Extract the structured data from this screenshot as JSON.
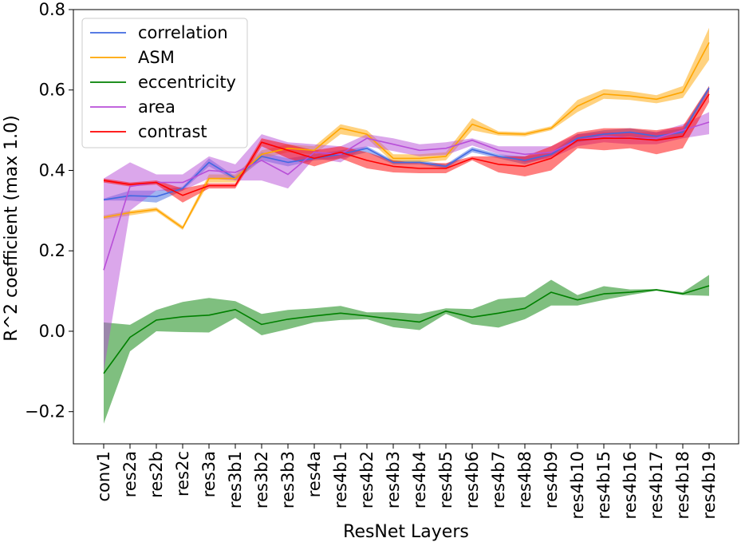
{
  "chart_data": {
    "type": "line",
    "title": "",
    "xlabel": "ResNet Layers",
    "ylabel": "R^2 coefficient (max 1.0)",
    "ylim": [
      -0.28,
      0.8
    ],
    "yticks": [
      -0.2,
      0.0,
      0.2,
      0.4,
      0.6,
      0.8
    ],
    "ytick_labels": [
      "−0.2",
      "0.0",
      "0.2",
      "0.4",
      "0.6",
      "0.8"
    ],
    "legend_position": "top-left",
    "grid": false,
    "categories": [
      "conv1",
      "res2a",
      "res2b",
      "res2c",
      "res3a",
      "res3b1",
      "res3b2",
      "res3b3",
      "res4a",
      "res4b1",
      "res4b2",
      "res4b3",
      "res4b4",
      "res4b5",
      "res4b6",
      "res4b7",
      "res4b8",
      "res4b9",
      "res4b10",
      "res4b15",
      "res4b16",
      "res4b17",
      "res4b18",
      "res4b19"
    ],
    "series": [
      {
        "name": "correlation",
        "color": "#4169e1",
        "values": [
          0.327,
          0.337,
          0.335,
          0.355,
          0.42,
          0.38,
          0.435,
          0.42,
          0.43,
          0.44,
          0.455,
          0.42,
          0.42,
          0.41,
          0.452,
          0.435,
          0.425,
          0.44,
          0.48,
          0.49,
          0.495,
          0.485,
          0.495,
          0.605
        ],
        "lower": [
          0.325,
          0.325,
          0.32,
          0.35,
          0.41,
          0.375,
          0.425,
          0.41,
          0.425,
          0.43,
          0.445,
          0.415,
          0.415,
          0.405,
          0.445,
          0.43,
          0.415,
          0.435,
          0.47,
          0.48,
          0.485,
          0.475,
          0.485,
          0.595
        ],
        "upper": [
          0.33,
          0.35,
          0.35,
          0.36,
          0.43,
          0.385,
          0.445,
          0.43,
          0.44,
          0.45,
          0.46,
          0.425,
          0.425,
          0.415,
          0.458,
          0.44,
          0.435,
          0.445,
          0.49,
          0.5,
          0.505,
          0.495,
          0.505,
          0.61
        ]
      },
      {
        "name": "ASM",
        "color": "#ffa500",
        "values": [
          0.283,
          0.295,
          0.303,
          0.257,
          0.38,
          0.38,
          0.44,
          0.455,
          0.45,
          0.505,
          0.49,
          0.43,
          0.43,
          0.435,
          0.515,
          0.492,
          0.49,
          0.505,
          0.56,
          0.59,
          0.585,
          0.577,
          0.595,
          0.718
        ],
        "lower": [
          0.278,
          0.288,
          0.298,
          0.252,
          0.37,
          0.37,
          0.43,
          0.445,
          0.44,
          0.49,
          0.48,
          0.42,
          0.42,
          0.425,
          0.5,
          0.487,
          0.485,
          0.5,
          0.545,
          0.578,
          0.575,
          0.567,
          0.58,
          0.675
        ],
        "upper": [
          0.288,
          0.3,
          0.308,
          0.262,
          0.39,
          0.39,
          0.45,
          0.465,
          0.46,
          0.515,
          0.5,
          0.44,
          0.44,
          0.445,
          0.53,
          0.497,
          0.495,
          0.51,
          0.575,
          0.602,
          0.597,
          0.587,
          0.61,
          0.755
        ]
      },
      {
        "name": "eccentricity",
        "color": "#008000",
        "values": [
          -0.105,
          -0.015,
          0.028,
          0.036,
          0.04,
          0.054,
          0.017,
          0.03,
          0.038,
          0.045,
          0.038,
          0.03,
          0.023,
          0.05,
          0.035,
          0.045,
          0.057,
          0.097,
          0.078,
          0.093,
          0.097,
          0.103,
          0.093,
          0.113
        ],
        "lower": [
          -0.23,
          -0.05,
          0.0,
          -0.002,
          -0.003,
          0.033,
          -0.01,
          0.005,
          0.022,
          0.028,
          0.03,
          0.01,
          0.003,
          0.043,
          0.017,
          0.009,
          0.03,
          0.064,
          0.064,
          0.078,
          0.09,
          0.101,
          0.09,
          0.088
        ],
        "upper": [
          0.022,
          0.016,
          0.053,
          0.073,
          0.083,
          0.075,
          0.043,
          0.053,
          0.057,
          0.063,
          0.047,
          0.047,
          0.043,
          0.057,
          0.055,
          0.08,
          0.085,
          0.128,
          0.09,
          0.112,
          0.104,
          0.105,
          0.097,
          0.14
        ]
      },
      {
        "name": "area",
        "color": "#b84fd8",
        "values": [
          0.152,
          0.36,
          0.37,
          0.37,
          0.4,
          0.395,
          0.425,
          0.39,
          0.445,
          0.44,
          0.48,
          0.465,
          0.45,
          0.455,
          0.475,
          0.45,
          0.44,
          0.445,
          0.475,
          0.485,
          0.48,
          0.48,
          0.5,
          0.52
        ],
        "lower": [
          -0.1,
          0.3,
          0.35,
          0.35,
          0.38,
          0.375,
          0.375,
          0.355,
          0.43,
          0.42,
          0.46,
          0.448,
          0.435,
          0.438,
          0.462,
          0.44,
          0.42,
          0.43,
          0.46,
          0.47,
          0.465,
          0.465,
          0.48,
          0.49
        ],
        "upper": [
          0.38,
          0.42,
          0.39,
          0.39,
          0.435,
          0.415,
          0.49,
          0.47,
          0.465,
          0.46,
          0.49,
          0.48,
          0.465,
          0.47,
          0.48,
          0.46,
          0.46,
          0.46,
          0.49,
          0.495,
          0.495,
          0.495,
          0.515,
          0.545
        ]
      },
      {
        "name": "contrast",
        "color": "#ff0000",
        "values": [
          0.375,
          0.365,
          0.37,
          0.338,
          0.362,
          0.362,
          0.47,
          0.45,
          0.43,
          0.445,
          0.425,
          0.41,
          0.405,
          0.405,
          0.43,
          0.415,
          0.41,
          0.43,
          0.475,
          0.48,
          0.48,
          0.475,
          0.485,
          0.59
        ],
        "lower": [
          0.37,
          0.36,
          0.365,
          0.32,
          0.355,
          0.355,
          0.46,
          0.43,
          0.41,
          0.43,
          0.405,
          0.395,
          0.393,
          0.393,
          0.425,
          0.395,
          0.385,
          0.4,
          0.455,
          0.45,
          0.455,
          0.44,
          0.455,
          0.57
        ],
        "upper": [
          0.38,
          0.37,
          0.375,
          0.355,
          0.368,
          0.368,
          0.48,
          0.465,
          0.45,
          0.46,
          0.445,
          0.425,
          0.418,
          0.418,
          0.435,
          0.435,
          0.435,
          0.46,
          0.495,
          0.505,
          0.505,
          0.5,
          0.51,
          0.61
        ]
      }
    ]
  }
}
